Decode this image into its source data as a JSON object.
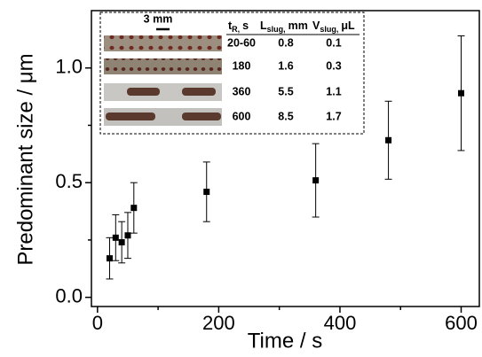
{
  "chart_data": {
    "type": "scatter",
    "x_label": "Time / s",
    "y_label": "Predominant size / μm",
    "xlim": [
      -10,
      630
    ],
    "ylim": [
      -0.04,
      1.25
    ],
    "xticks": [
      0,
      200,
      400,
      600
    ],
    "yticks": [
      {
        "value": 0,
        "label": "0.0"
      },
      {
        "value": 0.5,
        "label": "0.5"
      },
      {
        "value": 1,
        "label": "1.0"
      }
    ],
    "xminorticks": [
      100,
      300,
      500
    ],
    "yminorticks": [
      0.25,
      0.75
    ],
    "series": [
      {
        "color": "#000000",
        "x": [
          20,
          30,
          40,
          50,
          60,
          180,
          360,
          480,
          600
        ],
        "values": [
          0.17,
          0.26,
          0.24,
          0.27,
          0.39,
          0.46,
          0.51,
          0.685,
          0.89
        ],
        "errors": [
          0.09,
          0.1,
          0.09,
          0.1,
          0.11,
          0.13,
          0.16,
          0.17,
          0.25
        ]
      }
    ],
    "inset": {
      "scale_bar": "3 mm",
      "columns": [
        {
          "main": "t",
          "sub": "R,",
          "unit": "s"
        },
        {
          "main": "L",
          "sub": "slug,",
          "unit": "mm"
        },
        {
          "main": "V",
          "sub": "slug,",
          "unit": "μL"
        }
      ],
      "rows": [
        [
          "20-60",
          0.8,
          0.1
        ],
        [
          180,
          1.6,
          0.3
        ],
        [
          360,
          5.5,
          1.1
        ],
        [
          600,
          8.5,
          1.7
        ]
      ]
    }
  }
}
